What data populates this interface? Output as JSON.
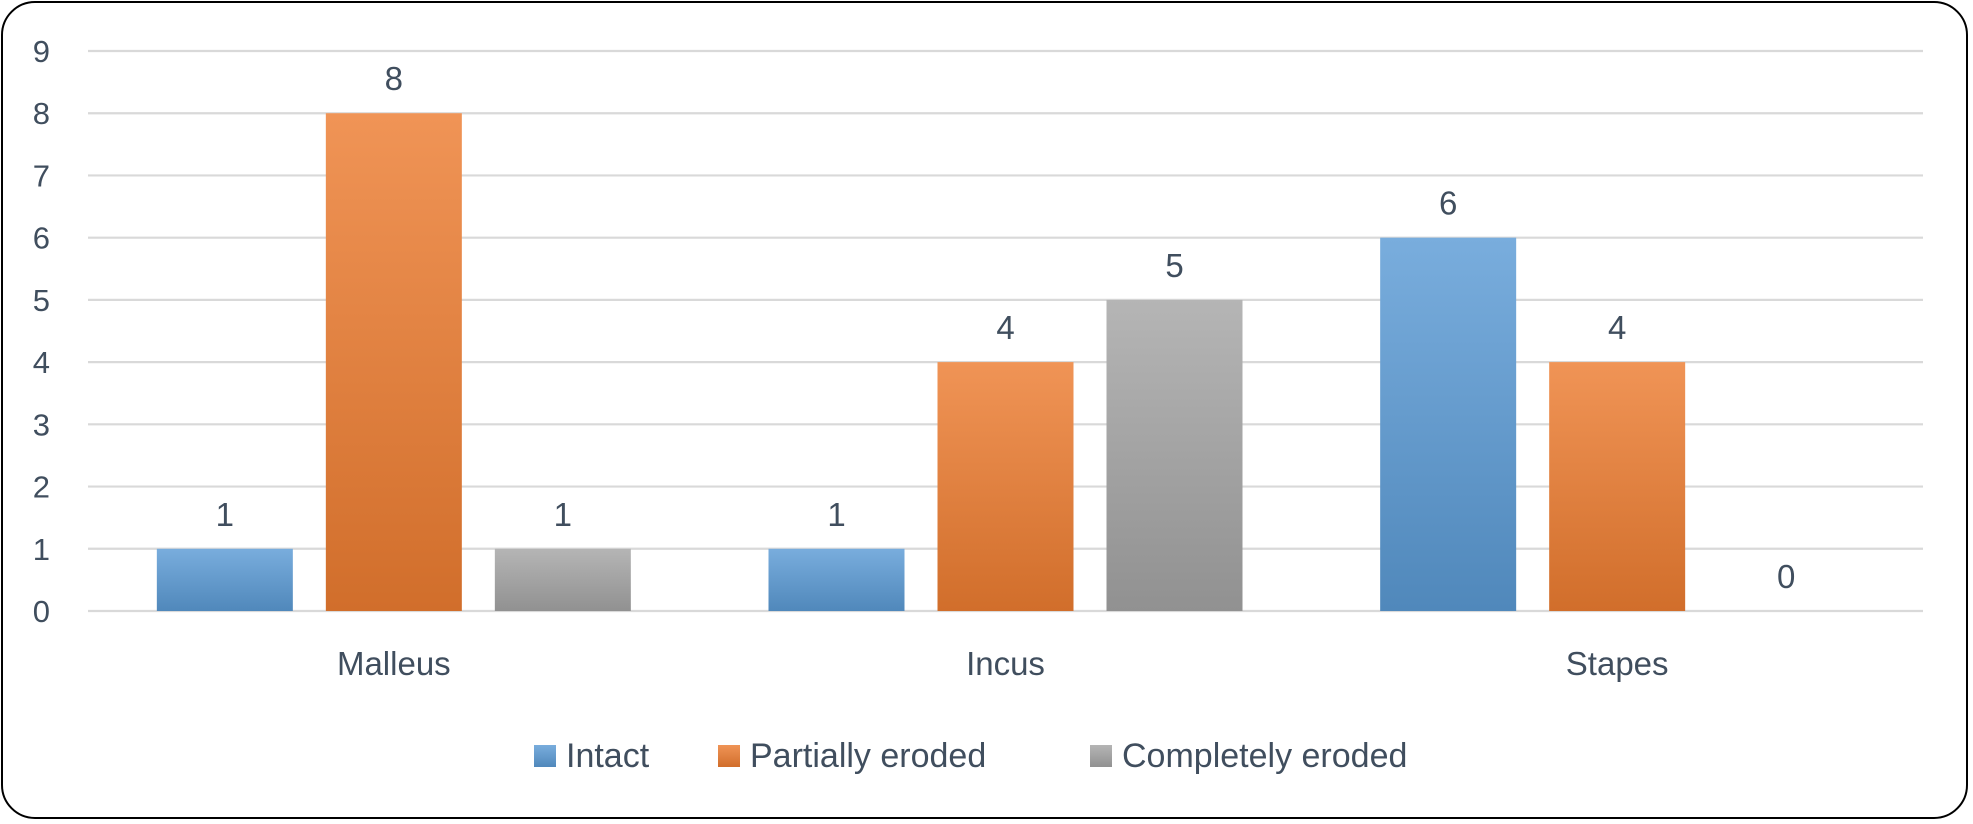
{
  "chart_data": {
    "type": "bar",
    "categories": [
      "Malleus",
      "Incus",
      "Stapes"
    ],
    "series": [
      {
        "name": "Intact",
        "values": [
          1,
          1,
          6
        ],
        "color": "#5b9bd5"
      },
      {
        "name": "Partially eroded",
        "values": [
          8,
          4,
          4
        ],
        "color": "#ed7d31"
      },
      {
        "name": "Completely eroded",
        "values": [
          1,
          5,
          0
        ],
        "color": "#a5a5a5"
      }
    ],
    "yticks": [
      "0",
      "1",
      "2",
      "3",
      "4",
      "5",
      "6",
      "7",
      "8",
      "9"
    ],
    "ylim": [
      0,
      9
    ],
    "title": "",
    "xlabel": "",
    "ylabel": "",
    "grid": true,
    "data_labels": true,
    "legend_position": "bottom"
  }
}
